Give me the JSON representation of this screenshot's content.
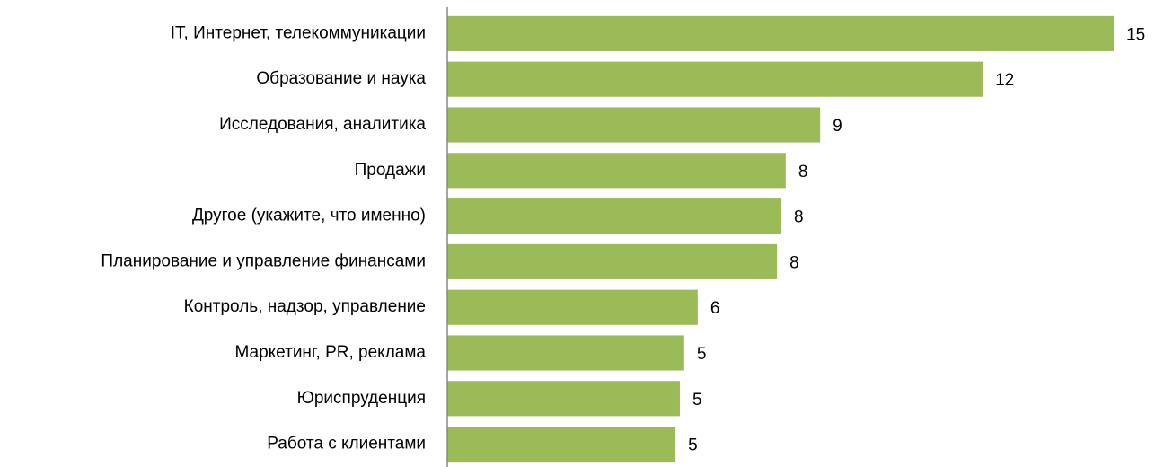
{
  "chart_data": {
    "type": "barh",
    "categories": [
      "IT, Интернет, телекоммуникации",
      "Образование и наука",
      "Исследования, аналитика",
      "Продажи",
      "Другое (укажите, что именно)",
      "Планирование и управление финансами",
      "Контроль, надзор, управление",
      "Маркетинг, PR, реклама",
      "Юриспруденция",
      "Работа с клиентами"
    ],
    "values": [
      15.3,
      12.29,
      8.56,
      7.77,
      7.67,
      7.57,
      5.75,
      5.44,
      5.34,
      5.24
    ],
    "value_labels": [
      "15",
      "12",
      "9",
      "8",
      "8",
      "8",
      "6",
      "5",
      "5",
      "5"
    ],
    "color": "#9bbb59",
    "xlim": [
      0,
      16
    ]
  }
}
